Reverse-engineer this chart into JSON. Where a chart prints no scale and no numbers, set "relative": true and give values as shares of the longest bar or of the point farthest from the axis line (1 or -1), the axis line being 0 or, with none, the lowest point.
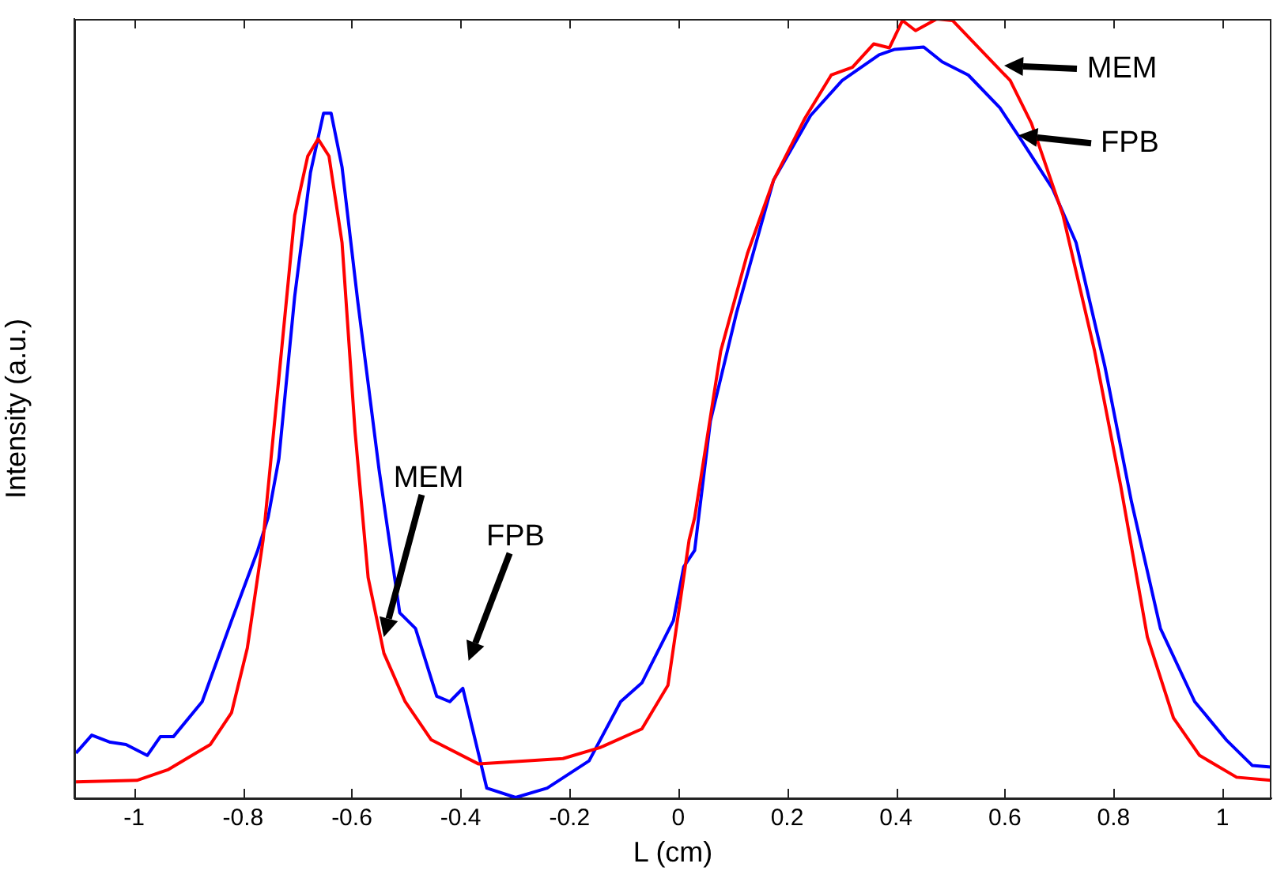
{
  "chart_data": {
    "type": "line",
    "relative": true,
    "xlabel": "L (cm)",
    "ylabel": "Intensity (a.u.)",
    "xlim": [
      -1.11,
      1.09
    ],
    "xticks": [
      -1,
      -0.8,
      -0.6,
      -0.4,
      -0.2,
      0,
      0.2,
      0.4,
      0.6,
      0.8,
      1
    ],
    "grid": false,
    "legend": false,
    "marker": "none",
    "line_style": "solid",
    "series": [
      {
        "color": "#ff0000",
        "x": [
          -1.107,
          -0.995,
          -0.937,
          -0.86,
          -0.821,
          -0.792,
          -0.763,
          -0.734,
          -0.705,
          -0.681,
          -0.662,
          -0.642,
          -0.618,
          -0.594,
          -0.57,
          -0.541,
          -0.502,
          -0.454,
          -0.367,
          -0.212,
          -0.144,
          -0.067,
          -0.019,
          0.02,
          0.03,
          0.078,
          0.127,
          0.175,
          0.233,
          0.281,
          0.32,
          0.359,
          0.388,
          0.412,
          0.436,
          0.475,
          0.504,
          0.552,
          0.61,
          0.649,
          0.707,
          0.765,
          0.813,
          0.862,
          0.91,
          0.958,
          1.026,
          1.089
        ],
        "values": [
          0.021,
          0.023,
          0.037,
          0.069,
          0.11,
          0.193,
          0.332,
          0.54,
          0.748,
          0.824,
          0.846,
          0.824,
          0.713,
          0.47,
          0.283,
          0.186,
          0.124,
          0.075,
          0.044,
          0.051,
          0.065,
          0.089,
          0.145,
          0.332,
          0.36,
          0.574,
          0.699,
          0.793,
          0.873,
          0.928,
          0.938,
          0.968,
          0.963,
          0.998,
          0.985,
          1,
          0.998,
          0.963,
          0.921,
          0.866,
          0.748,
          0.574,
          0.401,
          0.207,
          0.103,
          0.055,
          0.027,
          0.023
        ]
      },
      {
        "color": "#0000ff",
        "x": [
          -1.107,
          -1.078,
          -1.044,
          -1.015,
          -0.976,
          -0.952,
          -0.928,
          -0.875,
          -0.821,
          -0.773,
          -0.754,
          -0.734,
          -0.705,
          -0.676,
          -0.652,
          -0.638,
          -0.618,
          -0.589,
          -0.55,
          -0.512,
          -0.483,
          -0.444,
          -0.42,
          -0.396,
          -0.352,
          -0.299,
          -0.241,
          -0.164,
          -0.106,
          -0.067,
          -0.009,
          0.01,
          0.03,
          0.059,
          0.107,
          0.175,
          0.243,
          0.301,
          0.369,
          0.398,
          0.451,
          0.485,
          0.533,
          0.591,
          0.63,
          0.688,
          0.731,
          0.784,
          0.833,
          0.886,
          0.949,
          1.007,
          1.055,
          1.089
        ],
        "values": [
          0.058,
          0.081,
          0.072,
          0.069,
          0.055,
          0.079,
          0.079,
          0.124,
          0.228,
          0.318,
          0.36,
          0.436,
          0.644,
          0.803,
          0.879,
          0.879,
          0.81,
          0.637,
          0.422,
          0.238,
          0.218,
          0.131,
          0.124,
          0.141,
          0.013,
          0.001,
          0.013,
          0.048,
          0.124,
          0.148,
          0.228,
          0.297,
          0.318,
          0.484,
          0.623,
          0.793,
          0.876,
          0.921,
          0.954,
          0.961,
          0.964,
          0.945,
          0.928,
          0.886,
          0.845,
          0.782,
          0.713,
          0.554,
          0.38,
          0.218,
          0.124,
          0.075,
          0.042,
          0.04
        ]
      }
    ],
    "annotations": [
      "MEM",
      "FPB",
      {
        "text": "MEM",
        "x": 0.6,
        "y": 0.94
      },
      {
        "text": "FPB",
        "x": 0.625,
        "y": 0.85
      }
    ]
  }
}
